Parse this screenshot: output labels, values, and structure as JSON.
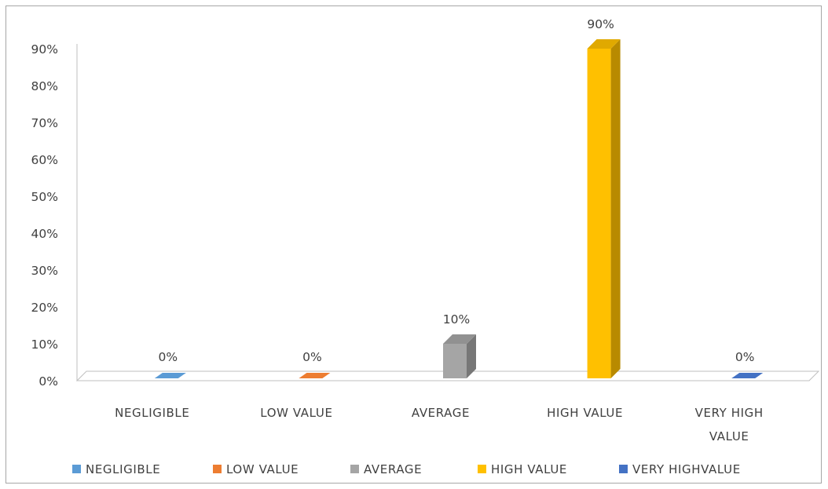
{
  "chart_data": {
    "type": "bar",
    "title": "",
    "xlabel": "",
    "ylabel": "",
    "categories": [
      "NEGLIGIBLE",
      "LOW VALUE",
      "AVERAGE",
      "HIGH VALUE",
      "VERY HIGH VALUE"
    ],
    "category_label_lines": [
      [
        "NEGLIGIBLE"
      ],
      [
        "LOW VALUE"
      ],
      [
        "AVERAGE"
      ],
      [
        "HIGH VALUE"
      ],
      [
        "VERY HIGH",
        "VALUE"
      ]
    ],
    "values": [
      0,
      0,
      10,
      90,
      0
    ],
    "data_labels": [
      "0%",
      "0%",
      "10%",
      "90%",
      "0%"
    ],
    "colors": [
      "#5b9bd5",
      "#ed7d31",
      "#a5a5a5",
      "#ffc000",
      "#4472c4"
    ],
    "yticks": [
      0,
      10,
      20,
      30,
      40,
      50,
      60,
      70,
      80,
      90
    ],
    "ytick_labels": [
      "0%",
      "10%",
      "20%",
      "30%",
      "40%",
      "50%",
      "60%",
      "70%",
      "80%",
      "90%"
    ],
    "ylim": [
      0,
      90
    ],
    "style": "3d-column",
    "grid": false,
    "legend": {
      "position": "bottom",
      "entries": [
        "NEGLIGIBLE",
        "LOW VALUE",
        "AVERAGE",
        "HIGH VALUE",
        "VERY HIGHVALUE"
      ]
    }
  }
}
